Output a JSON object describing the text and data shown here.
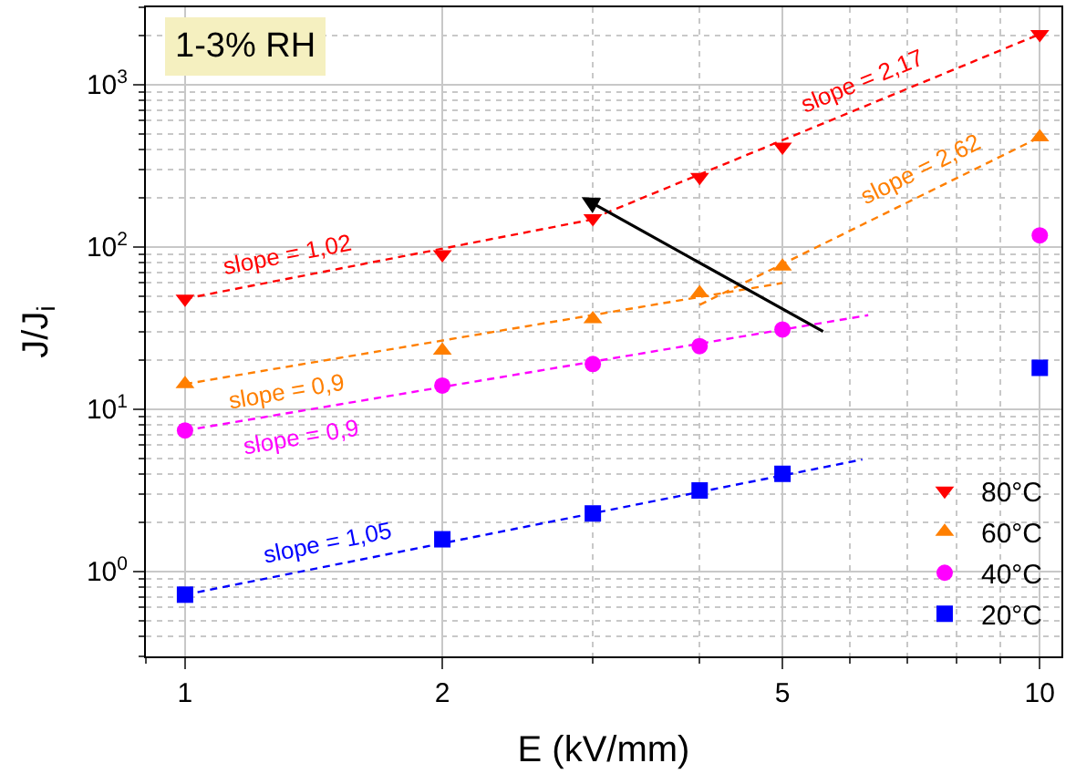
{
  "chart_data": {
    "type": "scatter",
    "xlabel": "E (kV/mm)",
    "ylabel": "J/J$_{i}$",
    "x": [
      1,
      2,
      3,
      4,
      5,
      10
    ],
    "series": [
      {
        "name": "80°C",
        "color": "#ff0000",
        "marker": "triangle-down",
        "values": [
          48,
          90,
          150,
          270,
          415,
          2050
        ]
      },
      {
        "name": "60°C",
        "color": "#ff7f00",
        "marker": "triangle",
        "values": [
          14.3,
          23,
          36,
          52,
          76,
          475
        ]
      },
      {
        "name": "40°C",
        "color": "#ff00ff",
        "marker": "circle",
        "values": [
          7.4,
          14,
          19,
          24.5,
          31,
          118
        ]
      },
      {
        "name": "20°C",
        "color": "#0000ff",
        "marker": "square",
        "values": [
          0.72,
          1.58,
          2.28,
          3.16,
          4.0,
          18
        ]
      },
      {
        "type": "line",
        "line_style": "dashed",
        "marker": "none",
        "color": "#ff0000",
        "x": [
          1,
          3
        ],
        "values": [
          48,
          148
        ]
      },
      {
        "type": "line",
        "line_style": "dashed",
        "marker": "none",
        "color": "#ff0000",
        "x": [
          3,
          10
        ],
        "values": [
          150,
          2050
        ]
      },
      {
        "type": "line",
        "line_style": "dashed",
        "marker": "none",
        "color": "#ff7f00",
        "x": [
          1,
          5
        ],
        "values": [
          14.3,
          60
        ]
      },
      {
        "type": "line",
        "line_style": "dashed",
        "marker": "none",
        "color": "#ff7f00",
        "x": [
          4,
          10
        ],
        "values": [
          44,
          475
        ]
      },
      {
        "type": "line",
        "line_style": "dashed",
        "marker": "none",
        "color": "#ff00ff",
        "x": [
          1,
          6.3
        ],
        "values": [
          7.4,
          38
        ]
      },
      {
        "type": "line",
        "line_style": "dashed",
        "marker": "none",
        "color": "#0000ff",
        "x": [
          1,
          6.2
        ],
        "values": [
          0.72,
          4.9
        ]
      }
    ],
    "annotations": [
      "1-3% RH",
      "slope = 1,02",
      "slope = 2,17",
      "slope = 0,9",
      "slope = 2,62",
      "slope = 0,9",
      "slope = 1,05"
    ],
    "log": "xy",
    "xlim": [
      0.9,
      10.6
    ],
    "ylim": [
      0.3,
      3000
    ],
    "xticks": [
      1,
      2,
      5,
      10
    ],
    "yticks": [
      {
        "value": 1,
        "label": "10$^{0}$"
      },
      {
        "value": 10,
        "label": "10$^{1}$"
      },
      {
        "value": 100,
        "label": "10$^{2}$"
      },
      {
        "value": 1000,
        "label": "10$^{3}$"
      }
    ],
    "grid": true,
    "legend": "bottom right"
  }
}
